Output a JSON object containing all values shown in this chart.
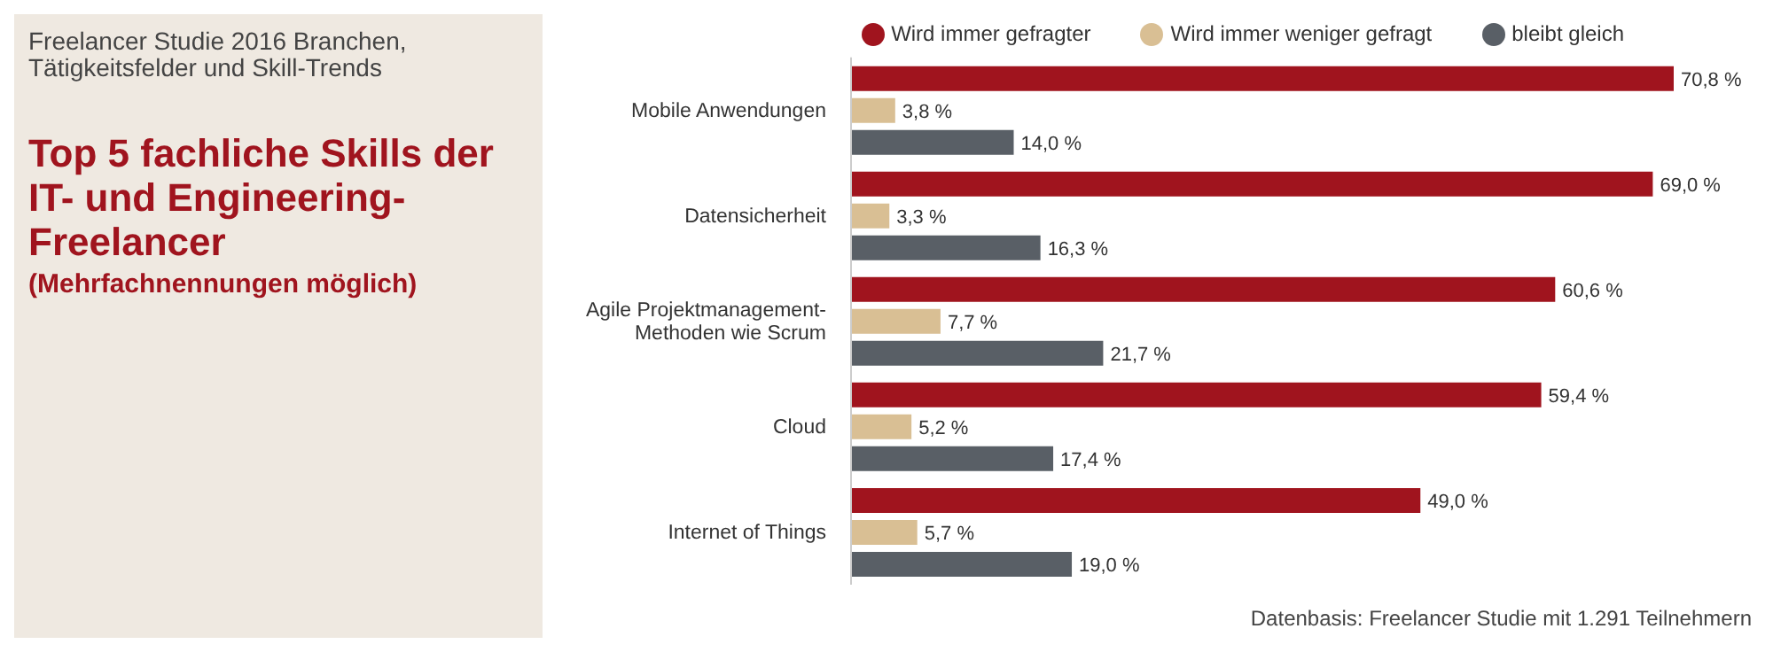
{
  "chart_data": {
    "type": "bar",
    "orientation": "horizontal",
    "title": "Top 5 fachliche Skills der IT- und Engineering-Freelancer",
    "subtitle": "(Mehrfachnennungen möglich)",
    "annotations": [
      "Freelancer Studie 2016 Branchen, Tätigkeitsfelder und Skill-Trends",
      "Datenbasis: Freelancer Studie mit 1.291 Teilnehmern"
    ],
    "categories": [
      "Mobile Anwendungen",
      "Datensicherheit",
      "Agile Projektmanagement-Methoden wie Scrum",
      "Cloud",
      "Internet of Things"
    ],
    "series": [
      {
        "name": "Wird immer gefragter",
        "color": "#a0141e",
        "values": [
          70.8,
          69.0,
          60.6,
          59.4,
          49.0
        ],
        "value_labels": [
          "70,8 %",
          "69,0 %",
          "60,6 %",
          "59,4 %",
          "49,0 %"
        ]
      },
      {
        "name": "Wird immer weniger gefragt",
        "color": "#d9bf94",
        "values": [
          3.8,
          3.3,
          7.7,
          5.2,
          5.7
        ],
        "value_labels": [
          "3,8 %",
          "3,3 %",
          "7,7 %",
          "5,2 %",
          "5,7 %"
        ]
      },
      {
        "name": "bleibt gleich",
        "color": "#595f66",
        "values": [
          14.0,
          16.3,
          21.7,
          17.4,
          19.0
        ],
        "value_labels": [
          "14,0 %",
          "16,3 %",
          "21,7 %",
          "17,4 %",
          "19,0 %"
        ]
      }
    ],
    "legend": "top right",
    "grid": false
  }
}
